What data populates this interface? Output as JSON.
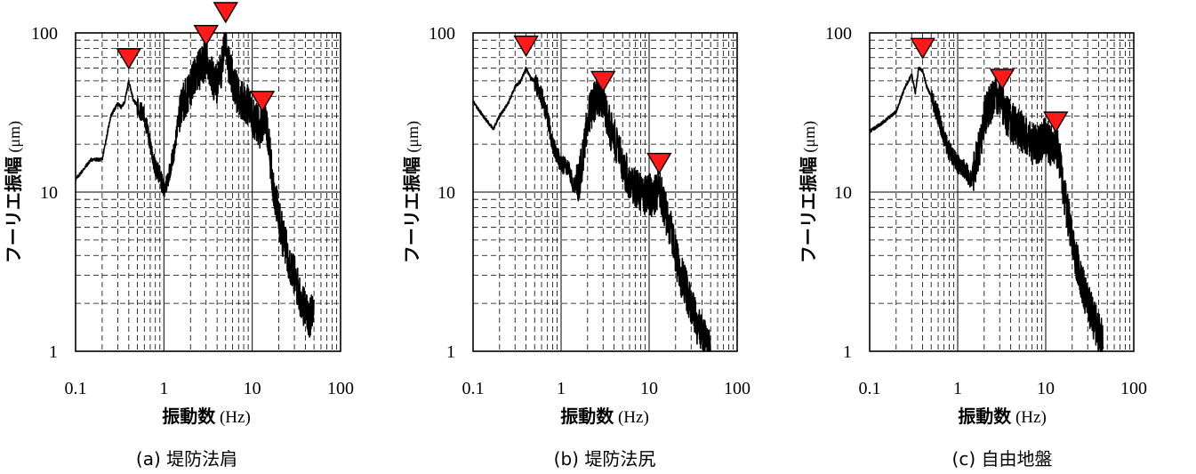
{
  "chart_data": [
    {
      "type": "line",
      "caption": "(a)  堤防法肩",
      "xlabel": "振動数",
      "xlabel_unit": "(Hz)",
      "ylabel": "フーリエ振幅",
      "ylabel_unit": "(μm)",
      "xscale": "log",
      "yscale": "log",
      "xlim": [
        0.1,
        100
      ],
      "ylim": [
        1,
        100
      ],
      "xticks": [
        "0.1",
        "1",
        "10",
        "100"
      ],
      "yticks": [
        "1",
        "10",
        "100"
      ],
      "grid": true,
      "series": [
        {
          "x": [
            0.1,
            0.15,
            0.2,
            0.25,
            0.3,
            0.33,
            0.36,
            0.4,
            0.45,
            0.5,
            0.6,
            0.7,
            0.8,
            0.9,
            1.0,
            1.1,
            1.3,
            1.5,
            1.8,
            2.0,
            2.3,
            2.6,
            3.0,
            3.3,
            3.6,
            4.0,
            4.5,
            5.0,
            5.5,
            6.0,
            7.0,
            8.0,
            9.0,
            10,
            11,
            12,
            13,
            14,
            15,
            17,
            19,
            21,
            24,
            27,
            30,
            35,
            40,
            45,
            50
          ],
          "y": [
            12,
            16,
            16,
            30,
            36,
            34,
            37,
            50,
            38,
            35,
            30,
            20,
            14,
            13,
            10,
            12,
            18,
            32,
            40,
            45,
            55,
            60,
            70,
            60,
            50,
            48,
            60,
            100,
            60,
            50,
            40,
            38,
            35,
            30,
            28,
            25,
            27,
            30,
            22,
            12,
            8,
            6,
            4.5,
            3.5,
            3,
            2.2,
            1.8,
            1.6,
            2.2
          ]
        }
      ],
      "peak_markers": [
        0.4,
        3.0,
        5.0,
        13
      ]
    },
    {
      "type": "line",
      "caption": "(b)  堤防法尻",
      "xlabel": "振動数",
      "xlabel_unit": "(Hz)",
      "ylabel": "フーリエ振幅",
      "ylabel_unit": "(μm)",
      "xscale": "log",
      "yscale": "log",
      "xlim": [
        0.1,
        100
      ],
      "ylim": [
        1,
        100
      ],
      "xticks": [
        "0.1",
        "1",
        "10",
        "100"
      ],
      "yticks": [
        "1",
        "10",
        "100"
      ],
      "grid": true,
      "series": [
        {
          "x": [
            0.1,
            0.13,
            0.17,
            0.2,
            0.25,
            0.3,
            0.35,
            0.4,
            0.45,
            0.5,
            0.6,
            0.7,
            0.8,
            1.0,
            1.2,
            1.4,
            1.6,
            1.8,
            2.0,
            2.3,
            2.6,
            3.0,
            3.3,
            3.6,
            4.0,
            4.5,
            5.0,
            6.0,
            7.0,
            8.0,
            9.0,
            10,
            11,
            12,
            13,
            14,
            16,
            18,
            20,
            23,
            26,
            30,
            35,
            40,
            45,
            50
          ],
          "y": [
            37,
            30,
            25,
            30,
            36,
            46,
            50,
            60,
            52,
            50,
            40,
            30,
            20,
            15,
            14,
            11,
            12,
            18,
            30,
            35,
            40,
            36,
            30,
            25,
            22,
            18,
            15,
            12,
            11,
            10,
            9.5,
            10,
            9,
            10,
            11,
            9,
            7,
            5.5,
            4,
            3,
            2.5,
            2,
            1.5,
            1.3,
            1.1,
            1.0
          ]
        }
      ],
      "peak_markers": [
        0.4,
        3.0,
        13
      ]
    },
    {
      "type": "line",
      "caption": "(c)  自由地盤",
      "xlabel": "振動数",
      "xlabel_unit": "(Hz)",
      "ylabel": "フーリエ振幅",
      "ylabel_unit": "(μm)",
      "xscale": "log",
      "yscale": "log",
      "xlim": [
        0.1,
        100
      ],
      "ylim": [
        1,
        100
      ],
      "xticks": [
        "0.1",
        "1",
        "10",
        "100"
      ],
      "yticks": [
        "1",
        "10",
        "100"
      ],
      "grid": true,
      "series": [
        {
          "x": [
            0.1,
            0.15,
            0.2,
            0.25,
            0.3,
            0.33,
            0.36,
            0.4,
            0.45,
            0.5,
            0.6,
            0.7,
            0.8,
            1.0,
            1.2,
            1.4,
            1.6,
            1.8,
            2.0,
            2.3,
            2.6,
            3.0,
            3.3,
            3.6,
            4.0,
            4.5,
            5.0,
            6.0,
            7.0,
            8.0,
            9.0,
            10,
            11,
            12,
            13,
            14,
            16,
            18,
            20,
            23,
            26,
            30,
            35,
            40,
            45
          ],
          "y": [
            24,
            28,
            32,
            45,
            55,
            42,
            60,
            58,
            45,
            40,
            30,
            22,
            18,
            15,
            14,
            12,
            15,
            20,
            30,
            35,
            38,
            42,
            35,
            30,
            28,
            26,
            25,
            22,
            20,
            20,
            21,
            22,
            20,
            19,
            20,
            18,
            10,
            7,
            5,
            3.5,
            2.6,
            2,
            1.6,
            1.3,
            1.2
          ]
        }
      ],
      "peak_markers": [
        0.4,
        3.2,
        13
      ]
    }
  ]
}
